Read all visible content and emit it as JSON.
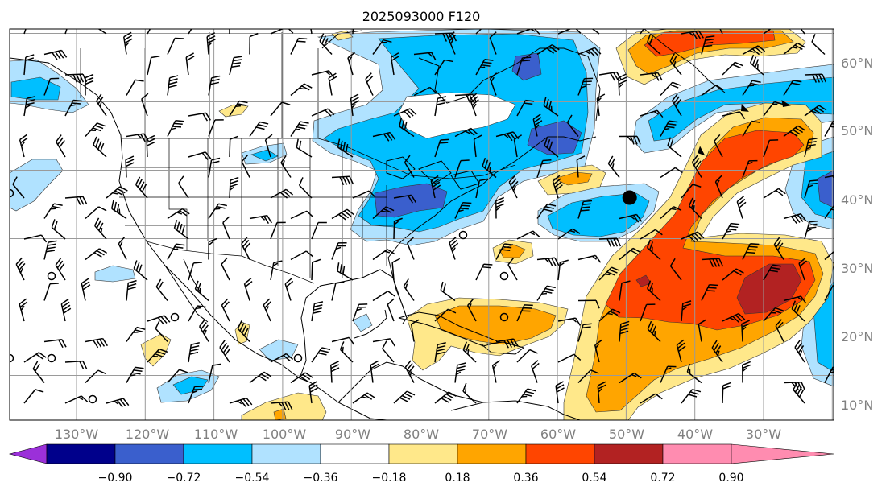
{
  "title": "2025093000 F120",
  "lon_labels": [
    "130°W",
    "120°W",
    "110°W",
    "100°W",
    "90°W",
    "80°W",
    "70°W",
    "60°W",
    "50°W",
    "40°W",
    "30°W"
  ],
  "lat_labels": [
    "60°N",
    "50°N",
    "40°N",
    "30°N",
    "20°N",
    "10°N"
  ],
  "colorbar": {
    "labels": [
      "−0.90",
      "−0.72",
      "−0.54",
      "−0.36",
      "−0.18",
      "0.18",
      "0.36",
      "0.54",
      "0.72",
      "0.90"
    ],
    "colors": [
      "#9b30d9",
      "#00008b",
      "#3a5fcd",
      "#00bfff",
      "#b0e2ff",
      "#ffffff",
      "#ffe88a",
      "#ffa500",
      "#ff4500",
      "#b22222",
      "#ff8cb0"
    ]
  },
  "markers": {
    "low_center": {
      "lon": -49.5,
      "lat": 41
    }
  }
}
